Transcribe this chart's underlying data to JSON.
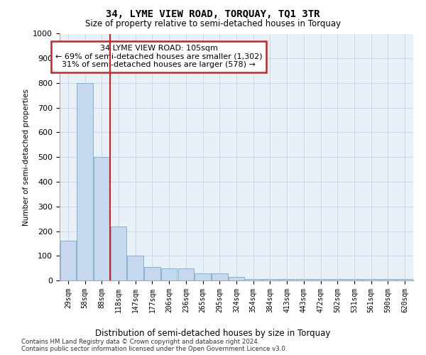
{
  "title": "34, LYME VIEW ROAD, TORQUAY, TQ1 3TR",
  "subtitle": "Size of property relative to semi-detached houses in Torquay",
  "xlabel": "Distribution of semi-detached houses by size in Torquay",
  "ylabel": "Number of semi-detached properties",
  "footer_line1": "Contains HM Land Registry data © Crown copyright and database right 2024.",
  "footer_line2": "Contains public sector information licensed under the Open Government Licence v3.0.",
  "categories": [
    "29sqm",
    "58sqm",
    "88sqm",
    "118sqm",
    "147sqm",
    "177sqm",
    "206sqm",
    "236sqm",
    "265sqm",
    "295sqm",
    "324sqm",
    "354sqm",
    "384sqm",
    "413sqm",
    "443sqm",
    "472sqm",
    "502sqm",
    "531sqm",
    "561sqm",
    "590sqm",
    "620sqm"
  ],
  "values": [
    160,
    800,
    500,
    220,
    100,
    55,
    50,
    50,
    30,
    30,
    15,
    5,
    5,
    5,
    5,
    5,
    5,
    5,
    5,
    5,
    5
  ],
  "bar_color": "#c5d8ee",
  "bar_edge_color": "#7aaad0",
  "grid_color": "#c8d8e8",
  "background_color": "#e8f0f8",
  "vline_x_idx": 2.5,
  "vline_color": "#cc2222",
  "annotation_text": "34 LYME VIEW ROAD: 105sqm\n← 69% of semi-detached houses are smaller (1,302)\n31% of semi-detached houses are larger (578) →",
  "annotation_box_color": "#cc2222",
  "ylim": [
    0,
    1000
  ],
  "yticks": [
    0,
    100,
    200,
    300,
    400,
    500,
    600,
    700,
    800,
    900,
    1000
  ]
}
